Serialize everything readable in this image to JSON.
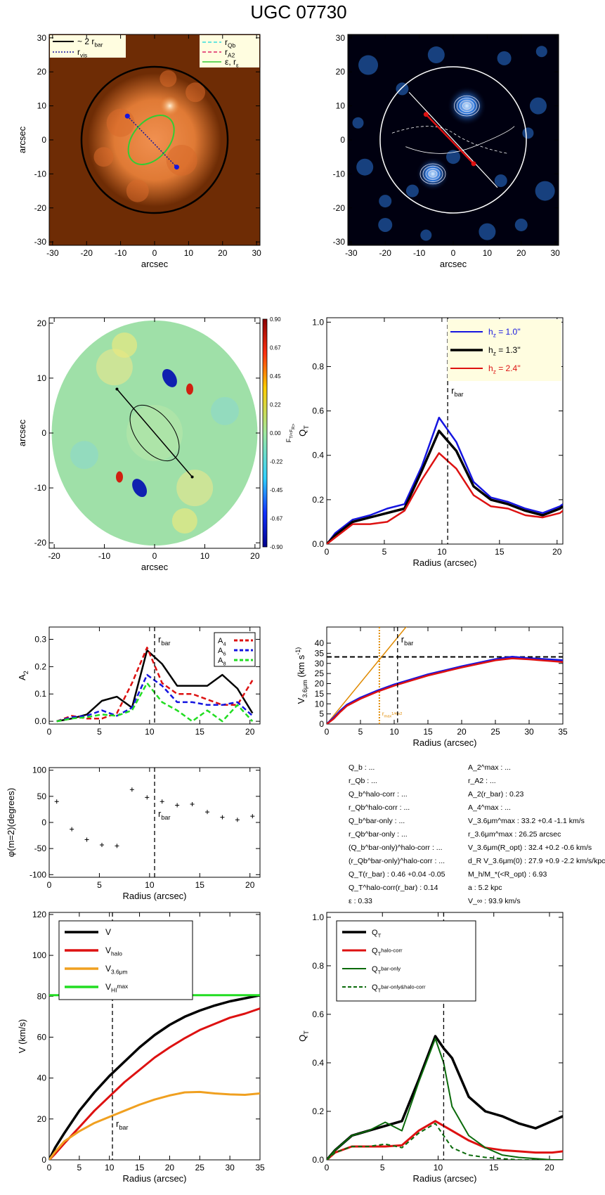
{
  "title": "UGC 07730",
  "panels": {
    "image_left": {
      "xlabel": "arcsec",
      "ylabel": "arcsec",
      "xlim": [
        -31,
        31
      ],
      "ylim": [
        -31,
        31
      ],
      "ticks": [
        -30,
        -20,
        -10,
        0,
        10,
        20,
        30
      ],
      "legend_left": [
        "~ 2 r_bar",
        "r_vis"
      ],
      "legend_right": [
        "r_Qb",
        "r_A2",
        "ε, r_ε"
      ],
      "colors": {
        "bg": "#6e2c05",
        "galaxy": "#e07a35",
        "core": "#fff3d8",
        "ellipse": "#33cc33",
        "points": "#1515e0"
      }
    },
    "image_right": {
      "xlabel": "arcsec",
      "ylabel": "",
      "xlim": [
        -31,
        31
      ],
      "ylim": [
        -31,
        31
      ],
      "ticks": [
        -30,
        -20,
        -10,
        0,
        10,
        20,
        30
      ],
      "colors": {
        "bg": "#000010",
        "glow": "#2a74d8",
        "bar_line": "#dd1111"
      }
    },
    "torque_map": {
      "xlabel": "arcsec",
      "ylabel": "arcsec",
      "xlim": [
        -21,
        21
      ],
      "ylim": [
        -21,
        21
      ],
      "xticks": [
        -20,
        -10,
        0,
        10,
        20
      ],
      "yticks": [
        -20,
        -10,
        0,
        10,
        20
      ],
      "colorbar_label": "F_T/<F_R>",
      "colorbar_ticks": [
        "0.90",
        "0.67",
        "0.45",
        "0.22",
        "0.00",
        "-0.22",
        "-0.45",
        "-0.67",
        "-0.90"
      ]
    },
    "info": {
      "left": [
        "Q_b : ...",
        "r_Qb : ...",
        "Q_b^halo-corr : ...",
        "r_Qb^halo-corr : ...",
        "Q_b^bar-only : ...",
        "r_Qb^bar-only : ...",
        "(Q_b^bar-only)^halo-corr : ...",
        "(r_Qb^bar-only)^halo-corr : ...",
        "Q_T(r_bar) : 0.46 +0.04 -0.05",
        "Q_T^halo-corr(r_bar) : 0.14",
        "ε : 0.33"
      ],
      "right": [
        "A_2^max : ...",
        "r_A2 : ...",
        "A_2(r_bar) : 0.23",
        "A_4^max : ...",
        "V_3.6μm^max : 33.2 +0.4 -1.1 km/s",
        "r_3.6μm^max : 26.25 arcsec",
        "V_3.6μm(R_opt) : 32.4 +0.2 -0.6 km/s",
        "d_R V_3.6μm(0) : 27.9 +0.9 -2.2 km/s/kpc",
        "M_h/M_*(<R_opt) : 6.93",
        "a : 5.2 kpc",
        "V_∞ : 93.9 km/s"
      ]
    }
  },
  "chart_data": [
    {
      "type": "line",
      "id": "qt_profiles",
      "xlabel": "Radius (arcsec)",
      "ylabel": "Q_T",
      "xlim": [
        0,
        20.5
      ],
      "ylim": [
        0,
        1.02
      ],
      "xticks": [
        0,
        5,
        10,
        15,
        20
      ],
      "yticks": [
        0.0,
        0.2,
        0.4,
        0.6,
        0.8,
        1.0
      ],
      "ytick_labels": [
        "0.0",
        "0.2",
        "0.4",
        "0.6",
        "0.8",
        "1.0"
      ],
      "vline": {
        "x": 10.5,
        "label": "r_bar"
      },
      "legend": [
        {
          "label": "h_z = 1.0''",
          "color": "#1515e0"
        },
        {
          "label": "h_z = 1.3''",
          "color": "#000000"
        },
        {
          "label": "h_z = 2.4''",
          "color": "#dd1111"
        }
      ],
      "x": [
        0,
        0.75,
        2.25,
        3.75,
        5.25,
        6.75,
        8.25,
        9.75,
        11.25,
        12.75,
        14.25,
        15.75,
        17.25,
        18.75,
        20.25,
        20.5
      ],
      "series": [
        {
          "name": "h_z = 1.0''",
          "color": "#1515e0",
          "width": 2.5,
          "values": [
            0.0,
            0.05,
            0.11,
            0.13,
            0.16,
            0.18,
            0.35,
            0.57,
            0.46,
            0.28,
            0.21,
            0.19,
            0.16,
            0.14,
            0.17,
            0.18
          ]
        },
        {
          "name": "h_z = 1.3''",
          "color": "#000000",
          "width": 3.5,
          "values": [
            0.0,
            0.04,
            0.1,
            0.12,
            0.14,
            0.16,
            0.33,
            0.51,
            0.42,
            0.26,
            0.2,
            0.18,
            0.15,
            0.13,
            0.16,
            0.17
          ]
        },
        {
          "name": "h_z = 2.4''",
          "color": "#dd1111",
          "width": 2.5,
          "values": [
            0.0,
            0.03,
            0.09,
            0.09,
            0.1,
            0.15,
            0.29,
            0.41,
            0.34,
            0.22,
            0.17,
            0.16,
            0.13,
            0.12,
            0.14,
            0.15
          ]
        }
      ]
    },
    {
      "type": "line",
      "id": "am_profiles",
      "xlabel": "",
      "ylabel": "A_2",
      "xlim": [
        0,
        21
      ],
      "ylim": [
        -0.01,
        0.345
      ],
      "xticks": [
        0,
        5,
        10,
        15,
        20
      ],
      "yticks": [
        0.0,
        0.1,
        0.2,
        0.3
      ],
      "ytick_labels": [
        "0.0",
        "0.1",
        "0.2",
        "0.3"
      ],
      "vline": {
        "x": 10.5,
        "label": "r_bar"
      },
      "legend": [
        {
          "label": "A_4",
          "color": "#dd1111"
        },
        {
          "label": "A_6",
          "color": "#1515e0"
        },
        {
          "label": "A_8",
          "color": "#22dd22"
        }
      ],
      "x": [
        0.75,
        2.25,
        3.75,
        5.25,
        6.75,
        8.25,
        9.75,
        11.25,
        12.75,
        14.25,
        15.75,
        17.25,
        18.75,
        20.25
      ],
      "series": [
        {
          "name": "A_2",
          "color": "#000000",
          "width": 2.5,
          "dash": "",
          "values": [
            0.0,
            0.01,
            0.025,
            0.075,
            0.09,
            0.05,
            0.26,
            0.21,
            0.13,
            0.13,
            0.13,
            0.17,
            0.12,
            0.03
          ]
        },
        {
          "name": "A_4",
          "color": "#dd1111",
          "width": 2.5,
          "dash": "7,4",
          "values": [
            0.0,
            0.02,
            0.01,
            0.01,
            0.03,
            0.14,
            0.27,
            0.14,
            0.1,
            0.1,
            0.08,
            0.06,
            0.06,
            0.15
          ]
        },
        {
          "name": "A_6",
          "color": "#1515e0",
          "width": 2.5,
          "dash": "7,4",
          "values": [
            0.0,
            0.015,
            0.02,
            0.04,
            0.02,
            0.05,
            0.17,
            0.13,
            0.07,
            0.07,
            0.06,
            0.06,
            0.07,
            0.02
          ]
        },
        {
          "name": "A_8",
          "color": "#22dd22",
          "width": 2.5,
          "dash": "7,4",
          "values": [
            0.0,
            0.01,
            0.015,
            0.025,
            0.02,
            0.04,
            0.14,
            0.07,
            0.04,
            0.0,
            0.04,
            0.0,
            0.06,
            0.0
          ]
        }
      ]
    },
    {
      "type": "line",
      "id": "v36_curve",
      "xlabel": "Radius (arcsec)",
      "ylabel": "V_3.6μm (km s^-1)",
      "xlim": [
        0,
        35
      ],
      "ylim": [
        0,
        48
      ],
      "xticks": [
        0,
        5,
        10,
        15,
        20,
        25,
        30,
        35
      ],
      "yticks": [
        0,
        5,
        10,
        15,
        20,
        25,
        30,
        35,
        40
      ],
      "ytick_labels": [
        "0",
        "5",
        "10",
        "15",
        "20",
        "25",
        "30",
        "35",
        "40"
      ],
      "vline": {
        "x": 10.5,
        "label": "r_bar"
      },
      "vline2": {
        "x": 7.8,
        "label": "r_max^1/4ln2",
        "color": "#e08a00"
      },
      "hline": {
        "y": 33.2
      },
      "x": [
        0,
        1,
        2,
        3,
        5,
        7.5,
        10,
        12.5,
        15,
        20,
        25,
        27.5,
        30,
        35
      ],
      "series": [
        {
          "name": "V_3.6μm",
          "color": "#1515e0",
          "width": 3,
          "values": [
            0,
            3,
            6.5,
            9.5,
            13,
            16.5,
            19.5,
            22,
            24.5,
            28.5,
            32,
            33.2,
            32.5,
            31.5
          ]
        },
        {
          "name": "V_3.6μm (lower)",
          "color": "#dd1111",
          "width": 2.5,
          "values": [
            0,
            2.5,
            6,
            9,
            12.5,
            16,
            19,
            21.5,
            24,
            28,
            31.5,
            32.5,
            32,
            30.7
          ]
        }
      ],
      "slope_line": {
        "color": "#e08a00",
        "x": [
          0,
          12
        ],
        "values": [
          0,
          49
        ]
      }
    },
    {
      "type": "scatter",
      "id": "phase_profile",
      "xlabel": "Radius (arcsec)",
      "ylabel": "φ(m=2)(degrees)",
      "xlim": [
        0,
        21
      ],
      "ylim": [
        -105,
        105
      ],
      "xticks": [
        0,
        5,
        10,
        15,
        20
      ],
      "yticks": [
        -100,
        -50,
        0,
        50,
        100
      ],
      "ytick_labels": [
        "-100",
        "-50",
        "0",
        "50",
        "100"
      ],
      "vline": {
        "x": 10.5,
        "label": "r_bar"
      },
      "x": [
        0.75,
        2.25,
        3.75,
        5.25,
        6.75,
        8.25,
        9.75,
        11.25,
        12.75,
        14.25,
        15.75,
        17.25,
        18.75,
        20.25
      ],
      "values": [
        40,
        -13,
        -33,
        -43,
        -45,
        63,
        48,
        40,
        33,
        35,
        20,
        10,
        5,
        12
      ]
    },
    {
      "type": "line",
      "id": "rotation_curve",
      "xlabel": "Radius (arcsec)",
      "ylabel": "V (km/s)",
      "xlim": [
        0,
        35
      ],
      "ylim": [
        0,
        121
      ],
      "xticks": [
        0,
        5,
        10,
        15,
        20,
        25,
        30,
        35
      ],
      "yticks": [
        0,
        20,
        40,
        60,
        80,
        100,
        120
      ],
      "ytick_labels": [
        "0",
        "20",
        "40",
        "60",
        "80",
        "100",
        "120"
      ],
      "vline": {
        "x": 10.5,
        "label": "r_bar"
      },
      "legend": [
        {
          "label": "V",
          "color": "#000000"
        },
        {
          "label": "V_halo",
          "color": "#dd1111"
        },
        {
          "label": "V_3.6μm",
          "color": "#f0a020"
        },
        {
          "label": "V_HI^max",
          "color": "#22dd22"
        }
      ],
      "x": [
        0,
        1,
        2.5,
        5,
        7.5,
        10,
        12.5,
        15,
        17.5,
        20,
        22.5,
        25,
        27.5,
        30,
        32.5,
        35
      ],
      "series": [
        {
          "name": "V",
          "color": "#000000",
          "width": 3.5,
          "values": [
            0,
            6,
            13,
            24,
            33,
            41,
            48,
            55,
            61,
            66,
            70,
            73,
            75.5,
            77.5,
            79,
            80.5
          ]
        },
        {
          "name": "V_halo",
          "color": "#dd1111",
          "width": 3,
          "values": [
            0,
            3,
            8,
            16,
            24,
            31,
            38,
            44,
            50,
            55,
            59.5,
            63.5,
            66.5,
            69.5,
            71.5,
            74
          ]
        },
        {
          "name": "V_3.6μm",
          "color": "#f0a020",
          "width": 3,
          "values": [
            0,
            4,
            9,
            14,
            18,
            21,
            24,
            27,
            29.5,
            31.5,
            33,
            33.2,
            32.5,
            32,
            31.8,
            32.5
          ]
        },
        {
          "name": "V_HI^max",
          "color": "#22dd22",
          "width": 3,
          "values": [
            80.5,
            80.5,
            80.5,
            80.5,
            80.5,
            80.5,
            80.5,
            80.5,
            80.5,
            80.5,
            80.5,
            80.5,
            80.5,
            80.5,
            80.5,
            80.5
          ]
        }
      ]
    },
    {
      "type": "line",
      "id": "qt_decomposition",
      "xlabel": "Radius (arcsec)",
      "ylabel": "Q_T",
      "xlim": [
        0,
        21.2
      ],
      "ylim": [
        0,
        1.02
      ],
      "xticks": [
        0,
        5,
        10,
        15,
        20
      ],
      "yticks": [
        0.0,
        0.2,
        0.4,
        0.6,
        0.8,
        1.0
      ],
      "ytick_labels": [
        "0.0",
        "0.2",
        "0.4",
        "0.6",
        "0.8",
        "1.0"
      ],
      "vline": {
        "x": 10.5,
        "label": "r_bar"
      },
      "legend": [
        {
          "label": "Q_T",
          "color": "#000000"
        },
        {
          "label": "Q_T^halo-corr",
          "color": "#dd1111"
        },
        {
          "label": "Q_T^bar-only",
          "color": "#0a6a0a"
        },
        {
          "label": "Q_T^bar-only&halo-corr",
          "color": "#0a6a0a"
        }
      ],
      "x": [
        0,
        0.75,
        2.25,
        3.75,
        5.25,
        6.75,
        8.25,
        9.75,
        10.5,
        11.25,
        12.75,
        14.25,
        15.75,
        17.25,
        18.75,
        20.25,
        21.2
      ],
      "series": [
        {
          "name": "Q_T",
          "color": "#000000",
          "width": 3.5,
          "dash": "",
          "values": [
            0.0,
            0.04,
            0.1,
            0.12,
            0.14,
            0.16,
            0.33,
            0.51,
            0.46,
            0.42,
            0.26,
            0.2,
            0.18,
            0.15,
            0.13,
            0.16,
            0.18
          ]
        },
        {
          "name": "Q_T^halo-corr",
          "color": "#dd1111",
          "width": 3,
          "dash": "",
          "values": [
            0.0,
            0.03,
            0.055,
            0.055,
            0.055,
            0.06,
            0.12,
            0.16,
            0.14,
            0.12,
            0.08,
            0.05,
            0.04,
            0.035,
            0.03,
            0.03,
            0.035
          ]
        },
        {
          "name": "Q_T^bar-only",
          "color": "#0a6a0a",
          "width": 2,
          "dash": "",
          "values": [
            0.0,
            0.04,
            0.1,
            0.12,
            0.155,
            0.12,
            0.32,
            0.5,
            0.4,
            0.22,
            0.1,
            0.05,
            0.02,
            0.01,
            0.005,
            0.0,
            0.0
          ]
        },
        {
          "name": "Q_T^bar-only&halo-corr",
          "color": "#0a6a0a",
          "width": 2,
          "dash": "6,4",
          "values": [
            0.0,
            0.03,
            0.055,
            0.055,
            0.065,
            0.05,
            0.11,
            0.15,
            0.1,
            0.05,
            0.02,
            0.01,
            0.005,
            0.0,
            0.0,
            0.0,
            0.0
          ]
        }
      ]
    }
  ]
}
